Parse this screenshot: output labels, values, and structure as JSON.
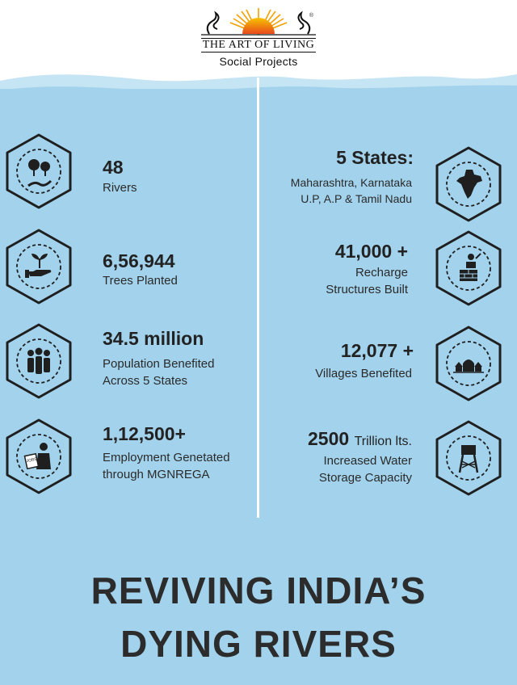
{
  "header": {
    "brand": "THE ART OF LIVING",
    "registered_mark": "®",
    "subtitle": "Social Projects"
  },
  "colors": {
    "water": "#a3d3ec",
    "water_light": "#c5e4f4",
    "ink": "#2b2b2b"
  },
  "stats_left": [
    {
      "number": "48",
      "label_lines": [
        "Rivers"
      ],
      "icon": "trees-river-icon"
    },
    {
      "number": "6,56,944",
      "label_lines": [
        "Trees Planted"
      ],
      "icon": "hand-sapling-icon"
    },
    {
      "number": "34.5 million",
      "label_lines": [
        "Population Benefited",
        "Across 5 States"
      ],
      "icon": "people-group-icon"
    },
    {
      "number": "1,12,500+",
      "label_lines": [
        "Employment Genetated",
        "through MGNREGA"
      ],
      "icon": "jobs-worker-icon"
    }
  ],
  "stats_right": [
    {
      "number": "5 States:",
      "label_lines": [
        "Maharashtra, Karnataka",
        "U.P, A.P & Tamil Nadu"
      ],
      "icon": "india-map-icon"
    },
    {
      "number": "41,000 +",
      "label_lines": [
        "Recharge",
        "Structures Built"
      ],
      "icon": "brick-builder-icon"
    },
    {
      "number": "12,077 +",
      "label_lines": [
        "Villages Benefited"
      ],
      "icon": "village-huts-icon"
    },
    {
      "number": "2500",
      "number_unit": "Trillion lts.",
      "label_lines": [
        "Increased Water",
        "Storage Capacity"
      ],
      "icon": "water-tower-icon"
    }
  ],
  "title_lines": [
    "REVIVING INDIA’S",
    "DYING RIVERS"
  ]
}
